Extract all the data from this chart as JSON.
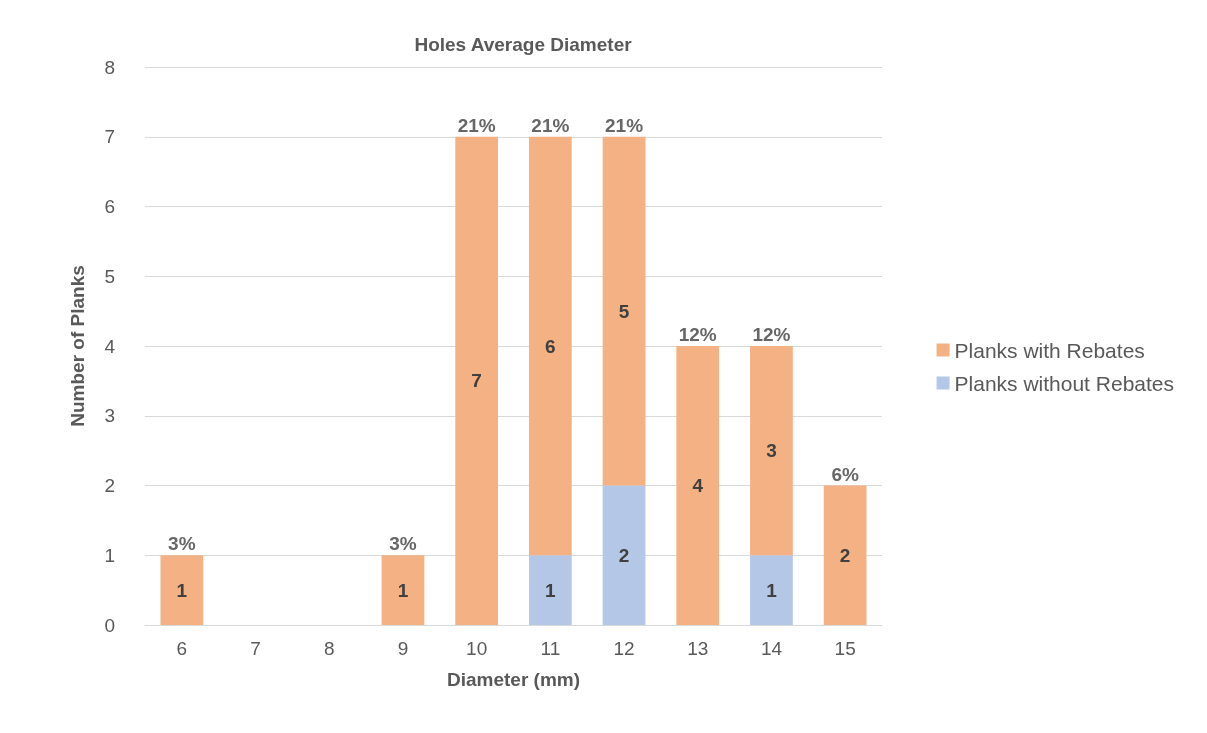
{
  "chart_data": {
    "type": "bar",
    "title": "Holes Average Diameter",
    "xlabel": "Diameter (mm)",
    "ylabel": "Number of Planks",
    "categories": [
      "6",
      "7",
      "8",
      "9",
      "10",
      "11",
      "12",
      "13",
      "14",
      "15"
    ],
    "series": [
      {
        "name": "Planks without Rebates",
        "color": "#b4c7e7",
        "values": [
          null,
          null,
          null,
          null,
          null,
          1,
          2,
          null,
          1,
          null
        ]
      },
      {
        "name": "Planks with Rebates",
        "color": "#f4b183",
        "values": [
          1,
          null,
          null,
          1,
          7,
          6,
          5,
          4,
          3,
          2
        ]
      }
    ],
    "stacked": true,
    "data_labels": true,
    "annotations": [
      {
        "text": "3%",
        "x": "6",
        "y": 1
      },
      {
        "text": "3%",
        "x": "9",
        "y": 1
      },
      {
        "text": "21%",
        "x": "10",
        "y": 7
      },
      {
        "text": "21%",
        "x": "11",
        "y": 7
      },
      {
        "text": "21%",
        "x": "12",
        "y": 7
      },
      {
        "text": "12%",
        "x": "13",
        "y": 4
      },
      {
        "text": "12%",
        "x": "14",
        "y": 4
      },
      {
        "text": "6%",
        "x": "15",
        "y": 2
      }
    ],
    "ylim": [
      0,
      8
    ],
    "yticks": [
      0,
      1,
      2,
      3,
      4,
      5,
      6,
      7,
      8
    ],
    "grid": "y",
    "legend": "right"
  }
}
